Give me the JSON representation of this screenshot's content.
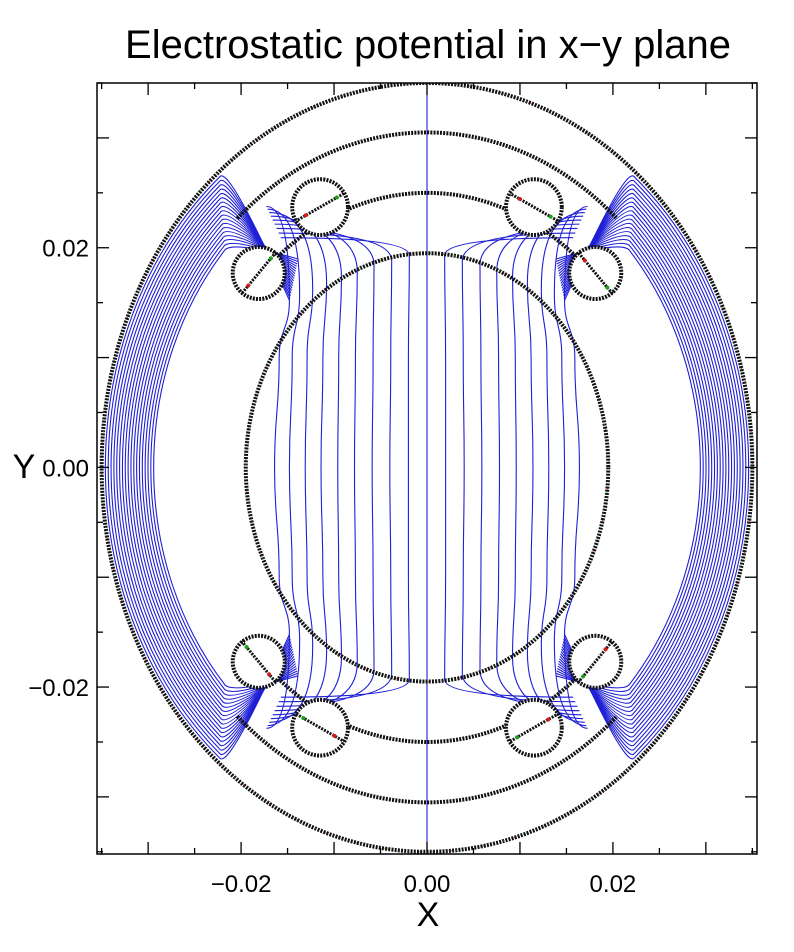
{
  "chart_data": {
    "type": "line",
    "title": "Electrostatic potential in x−y plane",
    "xlabel": "X",
    "ylabel": "Y",
    "xlim": [
      -0.0355,
      0.0355
    ],
    "ylim": [
      -0.0352,
      0.035
    ],
    "xticks": [
      {
        "value": -0.02,
        "label": "−0.02"
      },
      {
        "value": 0.0,
        "label": "0.00"
      },
      {
        "value": 0.02,
        "label": "0.02"
      }
    ],
    "yticks": [
      {
        "value": 0.02,
        "label": "0.02"
      },
      {
        "value": 0.0,
        "label": "0.00"
      },
      {
        "value": -0.02,
        "label": "−0.02"
      }
    ],
    "grid": false,
    "colors": {
      "equipotential": "#1f1fd6",
      "boundary": "#111111",
      "boundary_green": "#1aa31a",
      "boundary_red": "#d41a1a"
    },
    "geometry": {
      "outer_boundary_radius": 0.035,
      "inner_ring_outer_radius": 0.0305,
      "inner_ring_inner_radius": 0.025,
      "inner_region_radius": 0.0195,
      "small_circles": [
        {
          "x": -0.0115,
          "y": 0.0237,
          "r": 0.003
        },
        {
          "x": 0.0115,
          "y": 0.0237,
          "r": 0.003
        },
        {
          "x": -0.0115,
          "y": -0.0237,
          "r": 0.003
        },
        {
          "x": 0.0115,
          "y": -0.0237,
          "r": 0.003
        },
        {
          "x": -0.0181,
          "y": 0.0177,
          "r": 0.0028
        },
        {
          "x": 0.0181,
          "y": 0.0177,
          "r": 0.0028
        },
        {
          "x": -0.0181,
          "y": -0.0177,
          "r": 0.0028
        },
        {
          "x": 0.0181,
          "y": -0.0177,
          "r": 0.0028
        }
      ]
    },
    "series": [
      {
        "values": [
          [
            0.0,
            -0.0355
          ],
          [
            0.0,
            0.0355
          ]
        ]
      },
      {
        "values": [
          [
            0.0019,
            0.0193
          ],
          [
            0.002,
            0.01
          ],
          [
            0.002,
            0.0
          ],
          [
            0.002,
            -0.01
          ],
          [
            0.0019,
            -0.0193
          ]
        ]
      },
      {
        "values": [
          [
            0.0038,
            0.0188
          ],
          [
            0.0039,
            0.01
          ],
          [
            0.004,
            0.0
          ],
          [
            0.0039,
            -0.01
          ],
          [
            0.0038,
            -0.0188
          ]
        ]
      },
      {
        "values": [
          [
            0.0057,
            0.0184
          ],
          [
            0.0058,
            0.01
          ],
          [
            0.0059,
            0.0
          ],
          [
            0.0058,
            -0.01
          ],
          [
            0.0057,
            -0.0184
          ]
        ]
      },
      {
        "values": [
          [
            0.0075,
            0.0178
          ],
          [
            0.0077,
            0.01
          ],
          [
            0.0078,
            0.0
          ],
          [
            0.0077,
            -0.01
          ],
          [
            0.0075,
            -0.0178
          ]
        ]
      },
      {
        "values": [
          [
            0.0092,
            0.0173
          ],
          [
            0.0095,
            0.01
          ],
          [
            0.0096,
            0.0
          ],
          [
            0.0095,
            -0.01
          ],
          [
            0.0092,
            -0.0173
          ]
        ]
      },
      {
        "values": [
          [
            0.0108,
            0.0168
          ],
          [
            0.0112,
            0.01
          ],
          [
            0.0114,
            0.0
          ],
          [
            0.0112,
            -0.01
          ],
          [
            0.0108,
            -0.0168
          ]
        ]
      },
      {
        "values": [
          [
            0.0123,
            0.0163
          ],
          [
            0.0129,
            0.01
          ],
          [
            0.0131,
            0.0
          ],
          [
            0.0129,
            -0.01
          ],
          [
            0.0123,
            -0.0163
          ]
        ]
      },
      {
        "values": [
          [
            0.0137,
            0.0158
          ],
          [
            0.0145,
            0.01
          ],
          [
            0.0148,
            0.0
          ],
          [
            0.0145,
            -0.01
          ],
          [
            0.0137,
            -0.0158
          ]
        ]
      },
      {
        "values": [
          [
            0.0148,
            0.0152
          ],
          [
            0.0159,
            0.01
          ],
          [
            0.0164,
            0.0
          ],
          [
            0.0159,
            -0.01
          ],
          [
            0.0148,
            -0.0152
          ]
        ]
      },
      {
        "values": [
          [
            -0.0019,
            0.0193
          ],
          [
            -0.002,
            0.01
          ],
          [
            -0.002,
            0.0
          ],
          [
            -0.002,
            -0.01
          ],
          [
            -0.0019,
            -0.0193
          ]
        ]
      },
      {
        "values": [
          [
            -0.0038,
            0.0188
          ],
          [
            -0.0039,
            0.01
          ],
          [
            -0.004,
            0.0
          ],
          [
            -0.0039,
            -0.01
          ],
          [
            -0.0038,
            -0.0188
          ]
        ]
      },
      {
        "values": [
          [
            -0.0057,
            0.0184
          ],
          [
            -0.0058,
            0.01
          ],
          [
            -0.0059,
            0.0
          ],
          [
            -0.0058,
            -0.01
          ],
          [
            -0.0057,
            -0.0184
          ]
        ]
      },
      {
        "values": [
          [
            -0.0075,
            0.0178
          ],
          [
            -0.0077,
            0.01
          ],
          [
            -0.0078,
            0.0
          ],
          [
            -0.0077,
            -0.01
          ],
          [
            -0.0075,
            -0.0178
          ]
        ]
      },
      {
        "values": [
          [
            -0.0092,
            0.0173
          ],
          [
            -0.0095,
            0.01
          ],
          [
            -0.0096,
            0.0
          ],
          [
            -0.0095,
            -0.01
          ],
          [
            -0.0092,
            -0.0173
          ]
        ]
      },
      {
        "values": [
          [
            -0.0108,
            0.0168
          ],
          [
            -0.0112,
            0.01
          ],
          [
            -0.0114,
            0.0
          ],
          [
            -0.0112,
            -0.01
          ],
          [
            -0.0108,
            -0.0168
          ]
        ]
      },
      {
        "values": [
          [
            -0.0123,
            0.0163
          ],
          [
            -0.0129,
            0.01
          ],
          [
            -0.0131,
            0.0
          ],
          [
            -0.0129,
            -0.01
          ],
          [
            -0.0123,
            -0.0163
          ]
        ]
      },
      {
        "values": [
          [
            -0.0137,
            0.0158
          ],
          [
            -0.0145,
            0.01
          ],
          [
            -0.0148,
            0.0
          ],
          [
            -0.0145,
            -0.01
          ],
          [
            -0.0137,
            -0.0158
          ]
        ]
      },
      {
        "values": [
          [
            -0.0148,
            0.0152
          ],
          [
            -0.0159,
            0.01
          ],
          [
            -0.0164,
            0.0
          ],
          [
            -0.0159,
            -0.01
          ],
          [
            -0.0148,
            -0.0152
          ]
        ]
      }
    ]
  }
}
